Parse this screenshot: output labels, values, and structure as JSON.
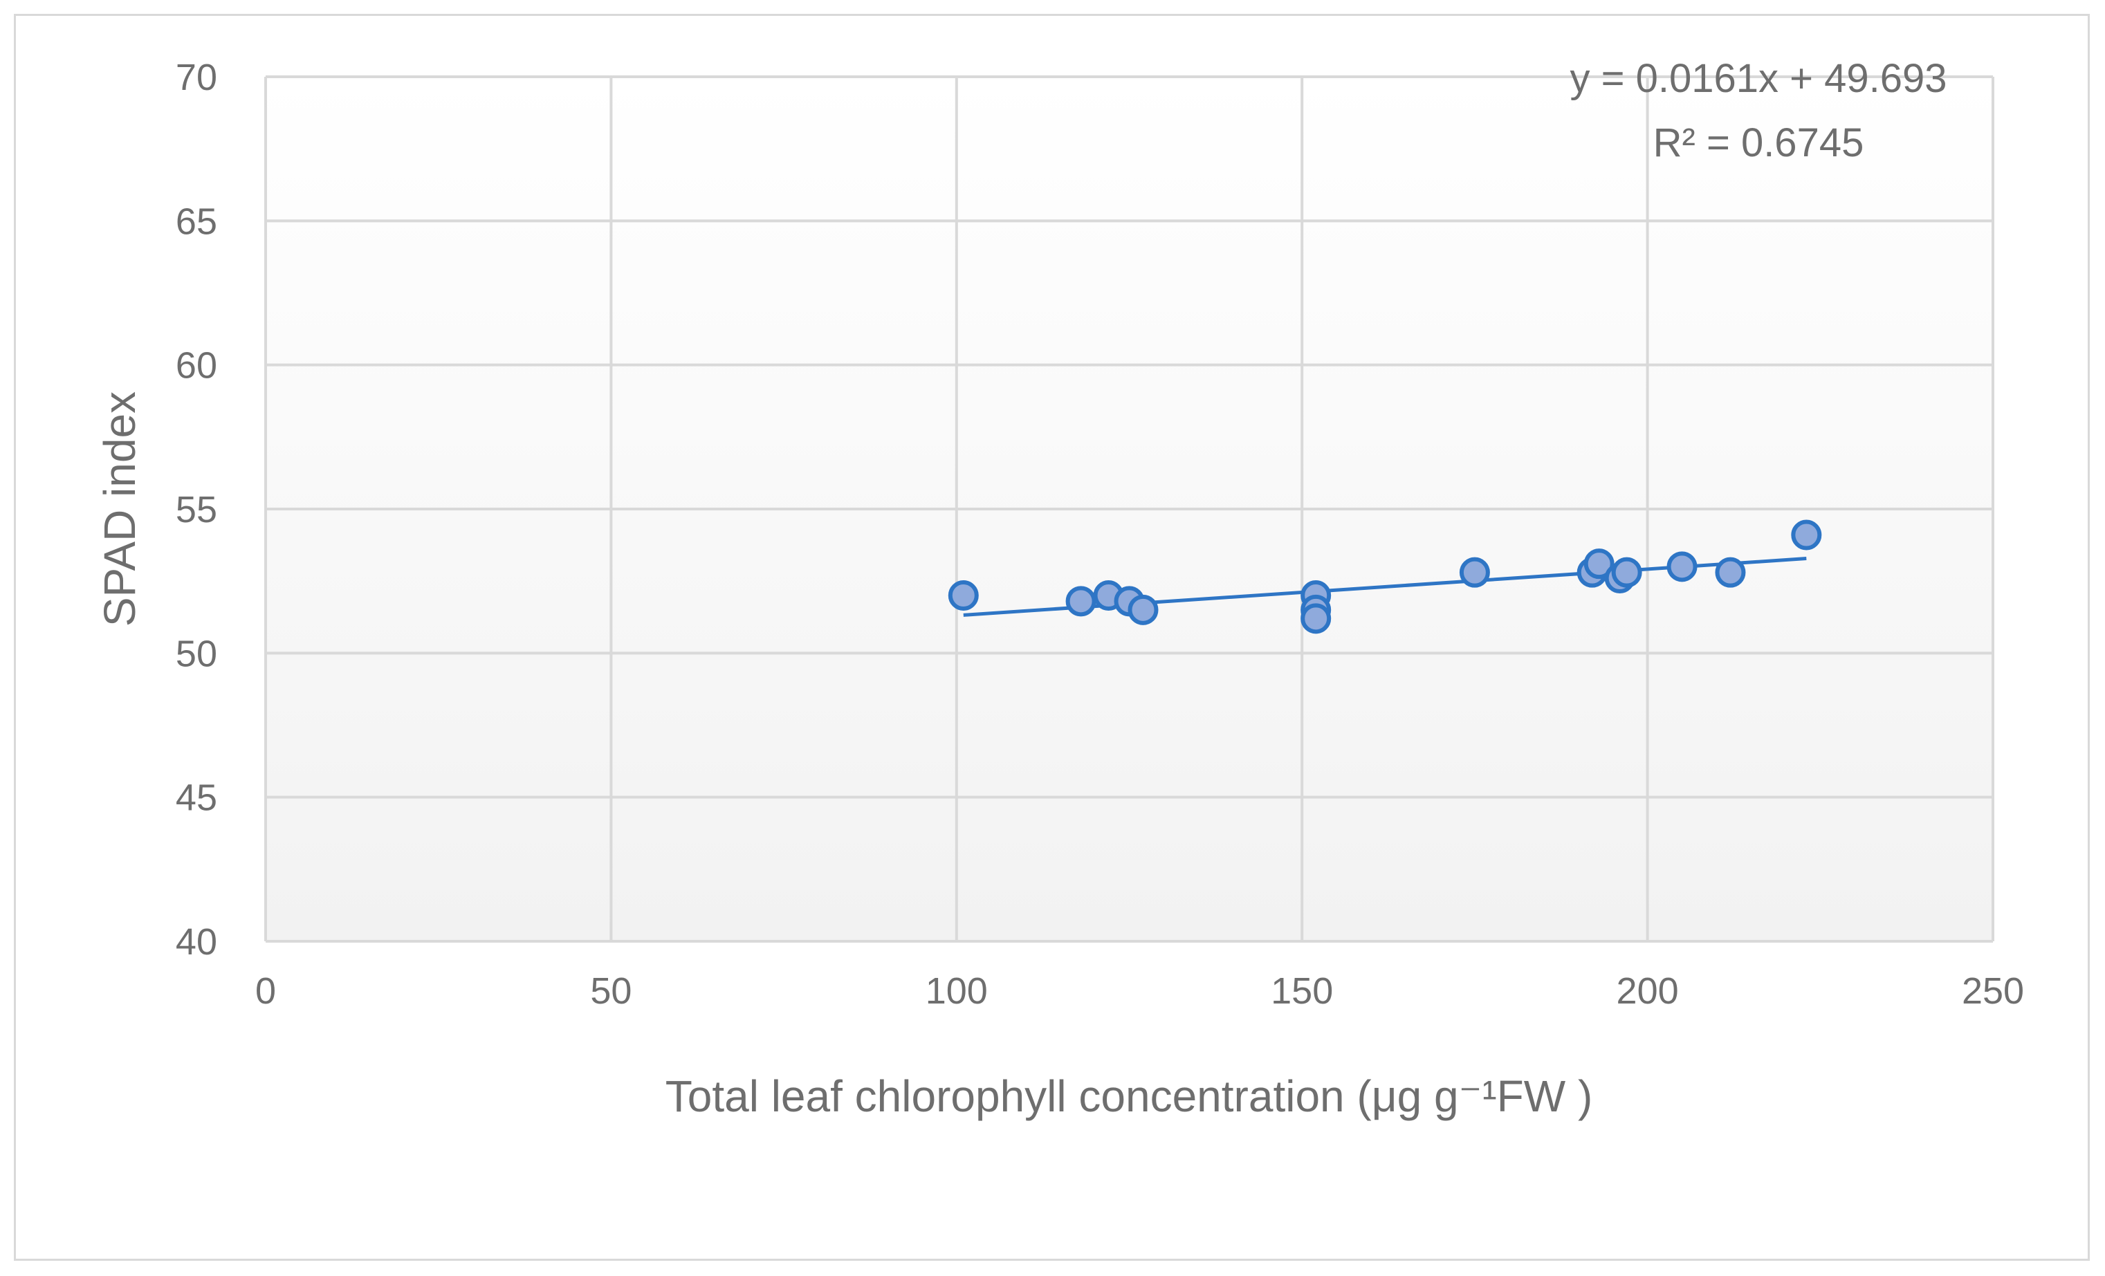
{
  "chart_data": {
    "type": "scatter",
    "title": "",
    "xlabel": "Total leaf chlorophyll concentration (μg g⁻¹FW   )",
    "ylabel": "SPAD index",
    "xlim": [
      0,
      250
    ],
    "ylim": [
      40,
      70
    ],
    "x_ticks": [
      "0",
      "50",
      "100",
      "150",
      "200",
      "250"
    ],
    "y_ticks": [
      "40",
      "45",
      "50",
      "55",
      "60",
      "65",
      "70"
    ],
    "x_tick_values": [
      0,
      50,
      100,
      150,
      200,
      250
    ],
    "y_tick_values": [
      40,
      45,
      50,
      55,
      60,
      65,
      70
    ],
    "grid": true,
    "legend": "none",
    "marker_fill": "#8faadc",
    "marker_edge": "#2e75c5",
    "trendline_color": "#2e75c5",
    "points": [
      {
        "x": 101,
        "y": 52.0
      },
      {
        "x": 118,
        "y": 51.8
      },
      {
        "x": 122,
        "y": 52.0
      },
      {
        "x": 125,
        "y": 51.8
      },
      {
        "x": 127,
        "y": 51.5
      },
      {
        "x": 152,
        "y": 52.0
      },
      {
        "x": 152,
        "y": 51.5
      },
      {
        "x": 152,
        "y": 51.2
      },
      {
        "x": 175,
        "y": 52.8
      },
      {
        "x": 192,
        "y": 52.8
      },
      {
        "x": 193,
        "y": 53.1
      },
      {
        "x": 196,
        "y": 52.6
      },
      {
        "x": 197,
        "y": 52.8
      },
      {
        "x": 205,
        "y": 53.0
      },
      {
        "x": 212,
        "y": 52.8
      },
      {
        "x": 223,
        "y": 54.1
      }
    ],
    "trendline": {
      "slope": 0.0161,
      "intercept": 49.693,
      "x_range": [
        101,
        223
      ],
      "equation": "y = 0.0161x + 49.693",
      "r_squared": "R² = 0.6745"
    }
  }
}
